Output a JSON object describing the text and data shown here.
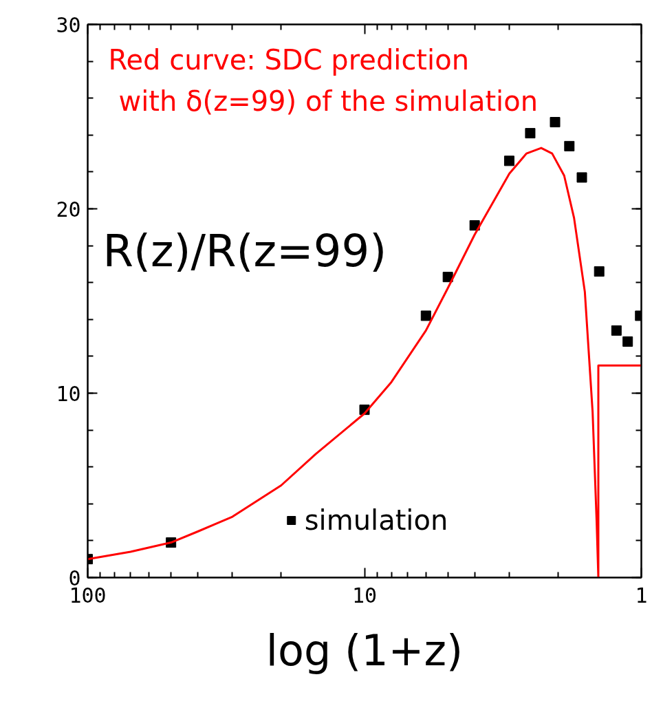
{
  "chart_data": {
    "type": "scatter",
    "xlabel": "log (1+z)",
    "log": "x",
    "xlim": [
      100,
      1
    ],
    "xticks": [
      100,
      10,
      1
    ],
    "ylim": [
      0,
      30
    ],
    "yticks": [
      0,
      10,
      20,
      30
    ],
    "grid": false,
    "legend": "bottom",
    "marker": "square",
    "annotations": [
      "Red curve: SDC prediction\n with δ(z=99) of the simulation",
      "R(z)/R(z=99)"
    ],
    "series": [
      {
        "name": "simulation",
        "color": "#000000",
        "x": [
          100,
          50,
          10,
          6,
          5,
          4,
          3,
          2.52,
          2.05,
          1.82,
          1.64,
          1.42,
          1.23,
          1.12,
          1.01
        ],
        "values": [
          1.0,
          1.9,
          9.1,
          14.2,
          16.3,
          19.1,
          22.6,
          24.1,
          24.7,
          23.4,
          21.7,
          16.6,
          13.4,
          12.8,
          14.2
        ]
      },
      {
        "type": "line",
        "marker": "none",
        "color": "#ff0000",
        "x": [
          100,
          70,
          50,
          40,
          30,
          20,
          15,
          10,
          8,
          6,
          5,
          4,
          3,
          2.6,
          2.3,
          2.1,
          1.9,
          1.75,
          1.6,
          1.5,
          1.45,
          1.43,
          1.43,
          1.0
        ],
        "values": [
          1.0,
          1.4,
          1.9,
          2.5,
          3.3,
          5.0,
          6.7,
          8.9,
          10.6,
          13.4,
          15.7,
          18.6,
          21.9,
          23.0,
          23.3,
          23.0,
          21.8,
          19.5,
          15.5,
          9.0,
          3.0,
          0,
          11.5,
          11.5
        ]
      }
    ]
  }
}
